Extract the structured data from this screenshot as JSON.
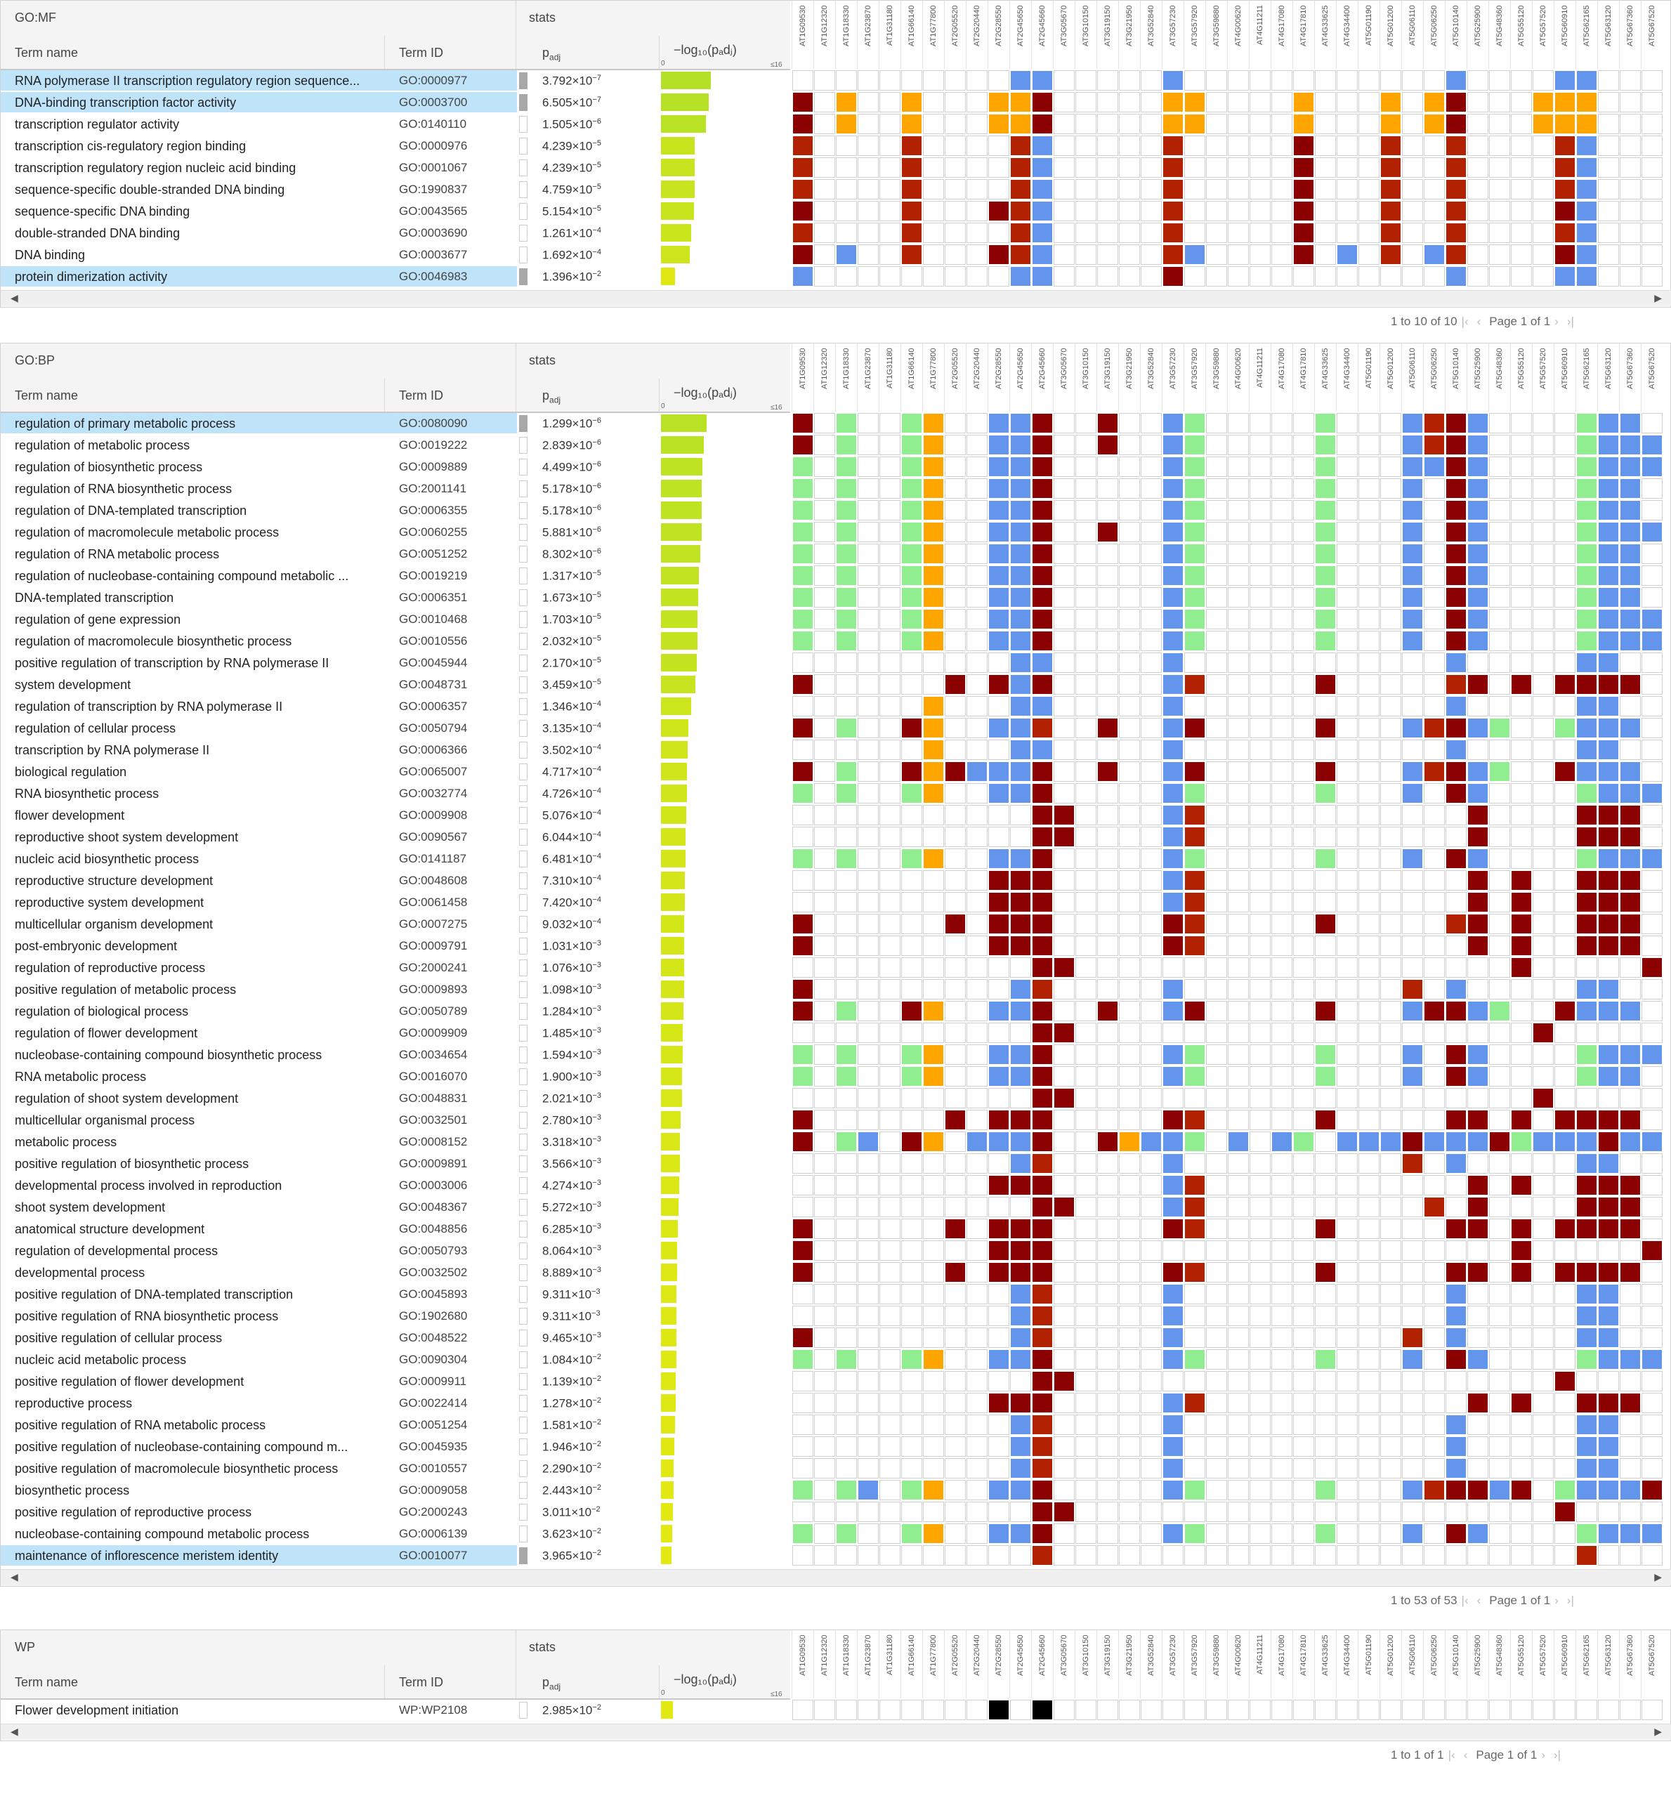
{
  "colors": {
    "dark": "#8b0000",
    "red": "#b22200",
    "orange": "#ffa500",
    "blue": "#6495ed",
    "green": "#90ee90",
    "black": "#000000",
    "highlight": "#bfe4fa"
  },
  "genes": [
    "AT1G09530",
    "AT1G12320",
    "AT1G18330",
    "AT1G23870",
    "AT1G31180",
    "AT1G66140",
    "AT1G77800",
    "AT2G05520",
    "AT2G20440",
    "AT2G28550",
    "AT2G45650",
    "AT2G45660",
    "AT3G05670",
    "AT3G10150",
    "AT3G19150",
    "AT3G21950",
    "AT3G52840",
    "AT3G57230",
    "AT3G57920",
    "AT3G59880",
    "AT4G00620",
    "AT4G11211",
    "AT4G17080",
    "AT4G17810",
    "AT4G33625",
    "AT4G34400",
    "AT5G01190",
    "AT5G01200",
    "AT5G06110",
    "AT5G06250",
    "AT5G10140",
    "AT5G25900",
    "AT5G48360",
    "AT5G55120",
    "AT5G57520",
    "AT5G60910",
    "AT5G62165",
    "AT5G63120",
    "AT5G67360",
    "AT5G67520"
  ],
  "header": {
    "term_name": "Term name",
    "term_id": "Term ID",
    "padj_label": "p",
    "padj_sub": "adj",
    "stats": "stats",
    "log_label": "−log₁₀(pₐdⱼ)",
    "tick0": "0",
    "tick16": "≤16"
  },
  "sections": [
    {
      "name": "GO:MF",
      "pager": {
        "range": "1 to 10 of 10",
        "page": "Page 1 of 1"
      },
      "rows": [
        {
          "name": "RNA polymerase II transcription regulatory region sequence...",
          "id": "GO:0000977",
          "m": "3.792",
          "e": "−7",
          "hl": true,
          "cells": "..........bb.....b............b....bb..."
        },
        {
          "name": "DNA-binding transcription factor activity",
          "id": "GO:0003700",
          "m": "6.505",
          "e": "−7",
          "hl": true,
          "cells": "d.o..o...ood.....oo....o...o.od...ooo..."
        },
        {
          "name": "transcription regulator activity",
          "id": "GO:0140110",
          "m": "1.505",
          "e": "−6",
          "hl": false,
          "cells": "d.o..o...ood.....oo....o...o.od...ooo..."
        },
        {
          "name": "transcription cis-regulatory region binding",
          "id": "GO:0000976",
          "m": "4.239",
          "e": "−5",
          "hl": false,
          "cells": "r....r....rb.....r.....d...r..r....rb..."
        },
        {
          "name": "transcription regulatory region nucleic acid binding",
          "id": "GO:0001067",
          "m": "4.239",
          "e": "−5",
          "hl": false,
          "cells": "r....r....rb.....r.....d...r..r....rb..."
        },
        {
          "name": "sequence-specific double-stranded DNA binding",
          "id": "GO:1990837",
          "m": "4.759",
          "e": "−5",
          "hl": false,
          "cells": "r....r....rb.....r.....d...r..r....rb..."
        },
        {
          "name": "sequence-specific DNA binding",
          "id": "GO:0043565",
          "m": "5.154",
          "e": "−5",
          "hl": false,
          "cells": "d....r...drb.....r.....d...r..r....db..."
        },
        {
          "name": "double-stranded DNA binding",
          "id": "GO:0003690",
          "m": "1.261",
          "e": "−4",
          "hl": false,
          "cells": "r....r....rb.....r.....d...r..r....rb..."
        },
        {
          "name": "DNA binding",
          "id": "GO:0003677",
          "m": "1.692",
          "e": "−4",
          "hl": false,
          "cells": "d.b..r...drb.....rb....d.b.r.br....db..."
        },
        {
          "name": "protein dimerization activity",
          "id": "GO:0046983",
          "m": "1.396",
          "e": "−2",
          "hl": true,
          "cells": "b.........bb.....d............b....bb..."
        }
      ]
    },
    {
      "name": "GO:BP",
      "pager": {
        "range": "1 to 53 of 53",
        "page": "Page 1 of 1"
      },
      "rows": [
        {
          "name": "regulation of primary metabolic process",
          "id": "GO:0080090",
          "m": "1.299",
          "e": "−6",
          "hl": true,
          "cells": "d.g..go..bbd..d..bg.....g...brdb....gbb.."
        },
        {
          "name": "regulation of metabolic process",
          "id": "GO:0019222",
          "m": "2.839",
          "e": "−6",
          "hl": false,
          "cells": "d.g..go..bbd..d..bg.....g...brdb....gbbb."
        },
        {
          "name": "regulation of biosynthetic process",
          "id": "GO:0009889",
          "m": "4.499",
          "e": "−6",
          "hl": false,
          "cells": "g.g..go..bbd.....bg.....g...bbdb....gbbb."
        },
        {
          "name": "regulation of RNA biosynthetic process",
          "id": "GO:2001141",
          "m": "5.178",
          "e": "−6",
          "hl": false,
          "cells": "g.g..go..bbd.....bg.....g...b.db....gbb.."
        },
        {
          "name": "regulation of DNA-templated transcription",
          "id": "GO:0006355",
          "m": "5.178",
          "e": "−6",
          "hl": false,
          "cells": "g.g..go..bbd.....bg.....g...b.db....gbb.."
        },
        {
          "name": "regulation of macromolecule metabolic process",
          "id": "GO:0060255",
          "m": "5.881",
          "e": "−6",
          "hl": false,
          "cells": "g.g..go..bbd..d..bg.....g...b.db....gbbb."
        },
        {
          "name": "regulation of RNA metabolic process",
          "id": "GO:0051252",
          "m": "8.302",
          "e": "−6",
          "hl": false,
          "cells": "g.g..go..bbd.....bg.....g...b.db....gbb.."
        },
        {
          "name": "regulation of nucleobase-containing compound metabolic ...",
          "id": "GO:0019219",
          "m": "1.317",
          "e": "−5",
          "hl": false,
          "cells": "g.g..go..bbd.....bg.....g...b.db....gbb.."
        },
        {
          "name": "DNA-templated transcription",
          "id": "GO:0006351",
          "m": "1.673",
          "e": "−5",
          "hl": false,
          "cells": "g.g..go..bbd.....bg.....g...b.db....gbb.."
        },
        {
          "name": "regulation of gene expression",
          "id": "GO:0010468",
          "m": "1.703",
          "e": "−5",
          "hl": false,
          "cells": "g.g..go..bbd.....bg.....g...b.db....gbbb."
        },
        {
          "name": "regulation of macromolecule biosynthetic process",
          "id": "GO:0010556",
          "m": "2.032",
          "e": "−5",
          "hl": false,
          "cells": "g.g..go..bbd.....bg.....g...b.db....gbbb."
        },
        {
          "name": "positive regulation of transcription by RNA polymerase II",
          "id": "GO:0045944",
          "m": "2.170",
          "e": "−5",
          "hl": false,
          "cells": "..........bb.....b............b.....bb.."
        },
        {
          "name": "system development",
          "id": "GO:0048731",
          "m": "3.459",
          "e": "−5",
          "hl": false,
          "cells": "d......d.dbd.....br.....d.....rd.d.dddd.d."
        },
        {
          "name": "regulation of transcription by RNA polymerase II",
          "id": "GO:0006357",
          "m": "1.346",
          "e": "−4",
          "hl": false,
          "cells": "......o...bb.....b............b.....bb.."
        },
        {
          "name": "regulation of cellular process",
          "id": "GO:0050794",
          "m": "3.135",
          "e": "−4",
          "hl": false,
          "cells": "d.g..do..bbr..d..bd.....d...brdbg..gbbb."
        },
        {
          "name": "transcription by RNA polymerase II",
          "id": "GO:0006366",
          "m": "3.502",
          "e": "−4",
          "hl": false,
          "cells": "......o...bb.....b............b.....bb.."
        },
        {
          "name": "biological regulation",
          "id": "GO:0065007",
          "m": "4.717",
          "e": "−4",
          "hl": false,
          "cells": "d.g..dodbbbd..d..bd.....d...brdbg..dbbb."
        },
        {
          "name": "RNA biosynthetic process",
          "id": "GO:0032774",
          "m": "4.726",
          "e": "−4",
          "hl": false,
          "cells": "g.g..go..bbd.....bg.....g...b.db....gbbb."
        },
        {
          "name": "flower development",
          "id": "GO:0009908",
          "m": "5.076",
          "e": "−4",
          "hl": false,
          "cells": "...........dd....br............d....ddd.."
        },
        {
          "name": "reproductive shoot system development",
          "id": "GO:0090567",
          "m": "6.044",
          "e": "−4",
          "hl": false,
          "cells": "...........dd....br............d....ddd.."
        },
        {
          "name": "nucleic acid biosynthetic process",
          "id": "GO:0141187",
          "m": "6.481",
          "e": "−4",
          "hl": false,
          "cells": "g.g..go..bbd.....bg.....g...b.db....gbbb."
        },
        {
          "name": "reproductive structure development",
          "id": "GO:0048608",
          "m": "7.310",
          "e": "−4",
          "hl": false,
          "cells": ".........ddd.....br............d.d..ddd.d."
        },
        {
          "name": "reproductive system development",
          "id": "GO:0061458",
          "m": "7.420",
          "e": "−4",
          "hl": false,
          "cells": ".........ddd.....br............d.d..ddd.d."
        },
        {
          "name": "multicellular organism development",
          "id": "GO:0007275",
          "m": "9.032",
          "e": "−4",
          "hl": false,
          "cells": "d......d.ddd.....dr.....d.....rd.d..ddd.d."
        },
        {
          "name": "post-embryonic development",
          "id": "GO:0009791",
          "m": "1.031",
          "e": "−3",
          "hl": false,
          "cells": "d........ddd.....dr............d.d..ddd.d."
        },
        {
          "name": "regulation of reproductive process",
          "id": "GO:2000241",
          "m": "1.076",
          "e": "−3",
          "hl": false,
          "cells": "...........dd....................d.....dd.."
        },
        {
          "name": "positive regulation of metabolic process",
          "id": "GO:0009893",
          "m": "1.098",
          "e": "−3",
          "hl": false,
          "cells": "d.........br.....b..........r.b.....bb.."
        },
        {
          "name": "regulation of biological process",
          "id": "GO:0050789",
          "m": "1.284",
          "e": "−3",
          "hl": false,
          "cells": "d.g..do..bbd..d..bd.....d...bddbg..dbbb."
        },
        {
          "name": "regulation of flower development",
          "id": "GO:0009909",
          "m": "1.485",
          "e": "−3",
          "hl": false,
          "cells": "...........dd.....................d.....dd.."
        },
        {
          "name": "nucleobase-containing compound biosynthetic process",
          "id": "GO:0034654",
          "m": "1.594",
          "e": "−3",
          "hl": false,
          "cells": "g.g..go..bbd.....bg.....g...b.db....gbbb."
        },
        {
          "name": "RNA metabolic process",
          "id": "GO:0016070",
          "m": "1.900",
          "e": "−3",
          "hl": false,
          "cells": "g.g..go..bbd.....bg.....g...b.db....gbb.."
        },
        {
          "name": "regulation of shoot system development",
          "id": "GO:0048831",
          "m": "2.021",
          "e": "−3",
          "hl": false,
          "cells": "...........dd.....................d.....dd.."
        },
        {
          "name": "multicellular organismal process",
          "id": "GO:0032501",
          "m": "2.780",
          "e": "−3",
          "hl": false,
          "cells": "d......d.ddd.....dr.....d.....dd.d.dddd.d."
        },
        {
          "name": "metabolic process",
          "id": "GO:0008152",
          "m": "3.318",
          "e": "−3",
          "hl": false,
          "cells": "d.gb.do.bbbd..dobbg.b.bg.bbbdbbbdgbbbdbb"
        },
        {
          "name": "positive regulation of biosynthetic process",
          "id": "GO:0009891",
          "m": "3.566",
          "e": "−3",
          "hl": false,
          "cells": "..........br.....b..........r.b.....bb.."
        },
        {
          "name": "developmental process involved in reproduction",
          "id": "GO:0003006",
          "m": "4.274",
          "e": "−3",
          "hl": false,
          "cells": ".........ddd.....br............d.d..ddd.d."
        },
        {
          "name": "shoot system development",
          "id": "GO:0048367",
          "m": "5.272",
          "e": "−3",
          "hl": false,
          "cells": "...........dd....br..........r.d....ddd.."
        },
        {
          "name": "anatomical structure development",
          "id": "GO:0048856",
          "m": "6.285",
          "e": "−3",
          "hl": false,
          "cells": "d......d.ddd.....dr.....d.....dd.d.dddd.d."
        },
        {
          "name": "regulation of developmental process",
          "id": "GO:0050793",
          "m": "8.064",
          "e": "−3",
          "hl": false,
          "cells": "d........ddd.....................d.....dd.."
        },
        {
          "name": "developmental process",
          "id": "GO:0032502",
          "m": "8.889",
          "e": "−3",
          "hl": false,
          "cells": "d......d.ddd.....dr.....d.....dd.d.dddd.d."
        },
        {
          "name": "positive regulation of DNA-templated transcription",
          "id": "GO:0045893",
          "m": "9.311",
          "e": "−3",
          "hl": false,
          "cells": "..........br.....b............b.....bb.."
        },
        {
          "name": "positive regulation of RNA biosynthetic process",
          "id": "GO:1902680",
          "m": "9.311",
          "e": "−3",
          "hl": false,
          "cells": "..........br.....b............b.....bb.."
        },
        {
          "name": "positive regulation of cellular process",
          "id": "GO:0048522",
          "m": "9.465",
          "e": "−3",
          "hl": false,
          "cells": "d.........br.....b..........r.b.....bb.."
        },
        {
          "name": "nucleic acid metabolic process",
          "id": "GO:0090304",
          "m": "1.084",
          "e": "−2",
          "hl": false,
          "cells": "g.g..go..bbd.....bg.....g...b.db....gbbb."
        },
        {
          "name": "positive regulation of flower development",
          "id": "GO:0009911",
          "m": "1.139",
          "e": "−2",
          "hl": false,
          "cells": "...........dd......................d....."
        },
        {
          "name": "reproductive process",
          "id": "GO:0022414",
          "m": "1.278",
          "e": "−2",
          "hl": false,
          "cells": ".........ddd.....br............d.d..ddd.d."
        },
        {
          "name": "positive regulation of RNA metabolic process",
          "id": "GO:0051254",
          "m": "1.581",
          "e": "−2",
          "hl": false,
          "cells": "..........br.....b............b.....bb.."
        },
        {
          "name": "positive regulation of nucleobase-containing compound m...",
          "id": "GO:0045935",
          "m": "1.946",
          "e": "−2",
          "hl": false,
          "cells": "..........br.....b............b.....bb.."
        },
        {
          "name": "positive regulation of macromolecule biosynthetic process",
          "id": "GO:0010557",
          "m": "2.290",
          "e": "−2",
          "hl": false,
          "cells": "..........br.....b............b.....bb.."
        },
        {
          "name": "biosynthetic process",
          "id": "GO:0009058",
          "m": "2.443",
          "e": "−2",
          "hl": false,
          "cells": "g.gb.go..bbd.....bg.....g...brddbd.gbbbd.b"
        },
        {
          "name": "positive regulation of reproductive process",
          "id": "GO:2000243",
          "m": "3.011",
          "e": "−2",
          "hl": false,
          "cells": "...........dd......................d....."
        },
        {
          "name": "nucleobase-containing compound metabolic process",
          "id": "GO:0006139",
          "m": "3.623",
          "e": "−2",
          "hl": false,
          "cells": "g.g..go..bbd.....bg.....g...b.db....gbbb."
        },
        {
          "name": "maintenance of inflorescence meristem identity",
          "id": "GO:0010077",
          "m": "3.965",
          "e": "−2",
          "hl": true,
          "cells": "...........r........................r...."
        }
      ]
    },
    {
      "name": "WP",
      "pager": {
        "range": "1 to 1 of 1",
        "page": "Page 1 of 1"
      },
      "rows": [
        {
          "name": "Flower development initiation",
          "id": "WP:WP2108",
          "m": "2.985",
          "e": "−2",
          "hl": false,
          "cells": ".........k.k............................"
        }
      ]
    }
  ]
}
